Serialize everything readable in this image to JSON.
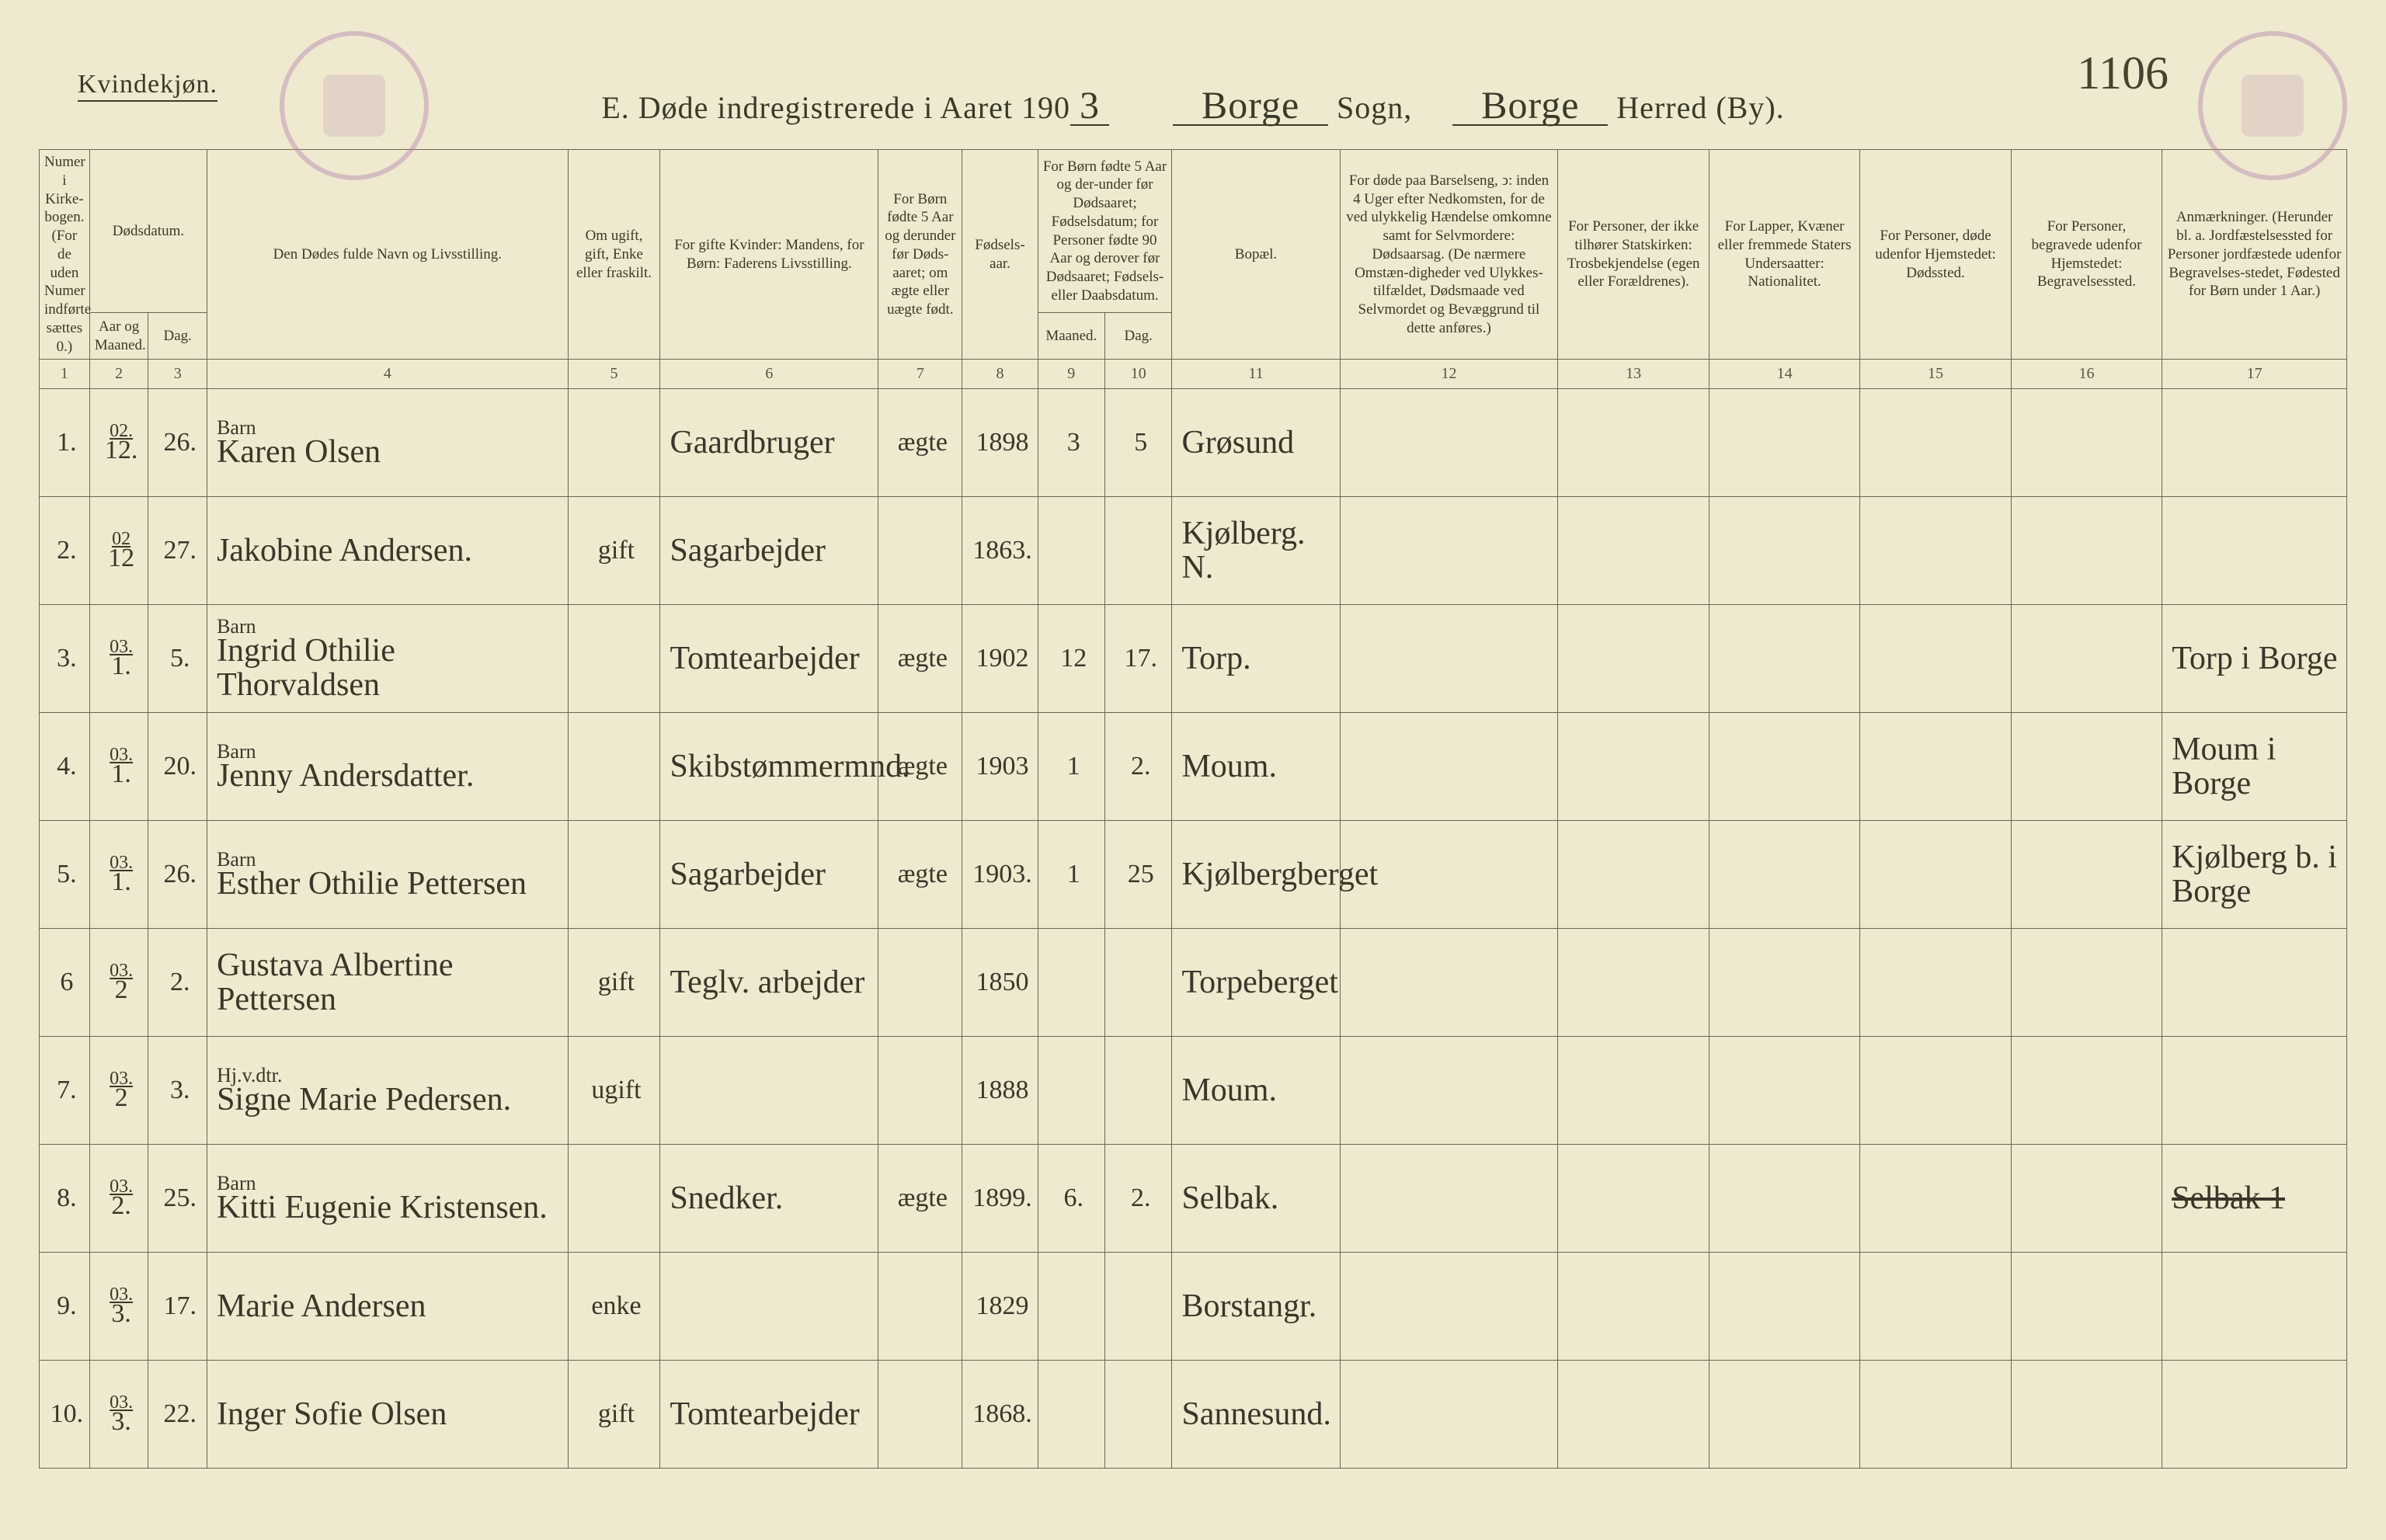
{
  "corner_label": "Kvindekjøn.",
  "page_number": "1106",
  "header": {
    "prefix": "E.   Døde indregistrerede i Aaret 190",
    "year_suffix": "3",
    "sogn_written": "Borge",
    "sogn_label": "Sogn,",
    "herred_written": "Borge",
    "herred_label": "Herred (By)."
  },
  "columns": {
    "h1": "Numer i Kirke-bogen. (For de uden Numer indførte sættes 0.)",
    "h2_top": "Dødsdatum.",
    "h2a": "Aar og Maaned.",
    "h2b": "Dag.",
    "h4": "Den Dødes fulde Navn og Livsstilling.",
    "h5": "Om ugift, gift, Enke eller fraskilt.",
    "h6": "For gifte Kvinder: Mandens, for Børn: Faderens Livsstilling.",
    "h7": "For Børn fødte 5 Aar og derunder før Døds-aaret; om ægte eller uægte født.",
    "h8": "Fødsels-aar.",
    "h9_top": "For Børn fødte 5 Aar og der-under før Dødsaaret; Fødselsdatum; for Personer fødte 90 Aar og derover før Dødsaaret; Fødsels- eller Daabsdatum.",
    "h9a": "Maaned.",
    "h9b": "Dag.",
    "h11": "Bopæl.",
    "h12": "For døde paa Barselseng, ↄ: inden 4 Uger efter Nedkomsten, for de ved ulykkelig Hændelse omkomne samt for Selvmordere: Dødsaarsag. (De nærmere Omstæn-digheder ved Ulykkes-tilfældet, Dødsmaade ved Selvmordet og Bevæggrund til dette anføres.)",
    "h13": "For Personer, der ikke tilhører Statskirken: Trosbekjendelse (egen eller Forældrenes).",
    "h14": "For Lapper, Kvæner eller fremmede Staters Undersaatter: Nationalitet.",
    "h15": "For Personer, døde udenfor Hjemstedet: Dødssted.",
    "h16": "For Personer, begravede udenfor Hjemstedet: Begravelsessted.",
    "h17": "Anmærkninger. (Herunder bl. a. Jordfæstelsessted for Personer jordfæstede udenfor Begravelses-stedet, Fødested for Børn under 1 Aar.)"
  },
  "colnums": [
    "1",
    "2",
    "3",
    "4",
    "5",
    "6",
    "7",
    "8",
    "9",
    "10",
    "11",
    "12",
    "13",
    "14",
    "15",
    "16",
    "17"
  ],
  "rows": [
    {
      "no": "1.",
      "year_sup": "02.",
      "month": "12.",
      "day": "26.",
      "note": "Barn",
      "name": "Karen Olsen",
      "status": "",
      "occ": "Gaardbruger",
      "legit": "ægte",
      "birth": "1898",
      "bm": "3",
      "bd": "5",
      "place": "Grøsund",
      "c12": "",
      "c13": "",
      "c14": "",
      "c15": "",
      "c16": "",
      "c17": ""
    },
    {
      "no": "2.",
      "year_sup": "02",
      "month": "12",
      "day": "27.",
      "note": "",
      "name": "Jakobine Andersen.",
      "status": "gift",
      "occ": "Sagarbejder",
      "legit": "",
      "birth": "1863.",
      "bm": "",
      "bd": "",
      "place": "Kjølberg. N.",
      "c12": "",
      "c13": "",
      "c14": "",
      "c15": "",
      "c16": "",
      "c17": ""
    },
    {
      "no": "3.",
      "year_sup": "03.",
      "month": "1.",
      "day": "5.",
      "note": "Barn",
      "name": "Ingrid Othilie Thorvaldsen",
      "status": "",
      "occ": "Tomtearbejder",
      "legit": "ægte",
      "birth": "1902",
      "bm": "12",
      "bd": "17.",
      "place": "Torp.",
      "c12": "",
      "c13": "",
      "c14": "",
      "c15": "",
      "c16": "",
      "c17": "Torp i Borge"
    },
    {
      "no": "4.",
      "year_sup": "03.",
      "month": "1.",
      "day": "20.",
      "note": "Barn",
      "name": "Jenny Andersdatter.",
      "status": "",
      "occ": "Skibstømmermnd.",
      "legit": "ægte",
      "birth": "1903",
      "bm": "1",
      "bd": "2.",
      "place": "Moum.",
      "c12": "",
      "c13": "",
      "c14": "",
      "c15": "",
      "c16": "",
      "c17": "Moum i Borge"
    },
    {
      "no": "5.",
      "year_sup": "03.",
      "month": "1.",
      "day": "26.",
      "note": "Barn",
      "name": "Esther Othilie Pettersen",
      "status": "",
      "occ": "Sagarbejder",
      "legit": "ægte",
      "birth": "1903.",
      "bm": "1",
      "bd": "25",
      "place": "Kjølbergberget",
      "c12": "",
      "c13": "",
      "c14": "",
      "c15": "",
      "c16": "",
      "c17": "Kjølberg b. i Borge"
    },
    {
      "no": "6",
      "year_sup": "03.",
      "month": "2",
      "day": "2.",
      "note": "",
      "name": "Gustava Albertine Pettersen",
      "status": "gift",
      "occ": "Teglv. arbejder",
      "legit": "",
      "birth": "1850",
      "bm": "",
      "bd": "",
      "place": "Torpeberget",
      "c12": "",
      "c13": "",
      "c14": "",
      "c15": "",
      "c16": "",
      "c17": ""
    },
    {
      "no": "7.",
      "year_sup": "03.",
      "month": "2",
      "day": "3.",
      "note": "Hj.v.dtr.",
      "name": "Signe Marie Pedersen.",
      "status": "ugift",
      "occ": "",
      "legit": "",
      "birth": "1888",
      "bm": "",
      "bd": "",
      "place": "Moum.",
      "c12": "",
      "c13": "",
      "c14": "",
      "c15": "",
      "c16": "",
      "c17": ""
    },
    {
      "no": "8.",
      "year_sup": "03.",
      "month": "2.",
      "day": "25.",
      "note": "Barn",
      "name": "Kitti Eugenie Kristensen.",
      "status": "",
      "occ": "Snedker.",
      "legit": "ægte",
      "birth": "1899.",
      "bm": "6.",
      "bd": "2.",
      "place": "Selbak.",
      "c12": "",
      "c13": "",
      "c14": "",
      "c15": "",
      "c16": "",
      "c17": "",
      "c17_strike": "Selbak 1"
    },
    {
      "no": "9.",
      "year_sup": "03.",
      "month": "3.",
      "day": "17.",
      "note": "",
      "name": "Marie Andersen",
      "status": "enke",
      "occ": "",
      "legit": "",
      "birth": "1829",
      "bm": "",
      "bd": "",
      "place": "Borstangr.",
      "c12": "",
      "c13": "",
      "c14": "",
      "c15": "",
      "c16": "",
      "c17": ""
    },
    {
      "no": "10.",
      "year_sup": "03.",
      "month": "3.",
      "day": "22.",
      "note": "",
      "name": "Inger Sofie Olsen",
      "status": "gift",
      "occ": "Tomtearbejder",
      "legit": "",
      "birth": "1868.",
      "bm": "",
      "bd": "",
      "place": "Sannesund.",
      "c12": "",
      "c13": "",
      "c14": "",
      "c15": "",
      "c16": "",
      "c17": ""
    }
  ]
}
